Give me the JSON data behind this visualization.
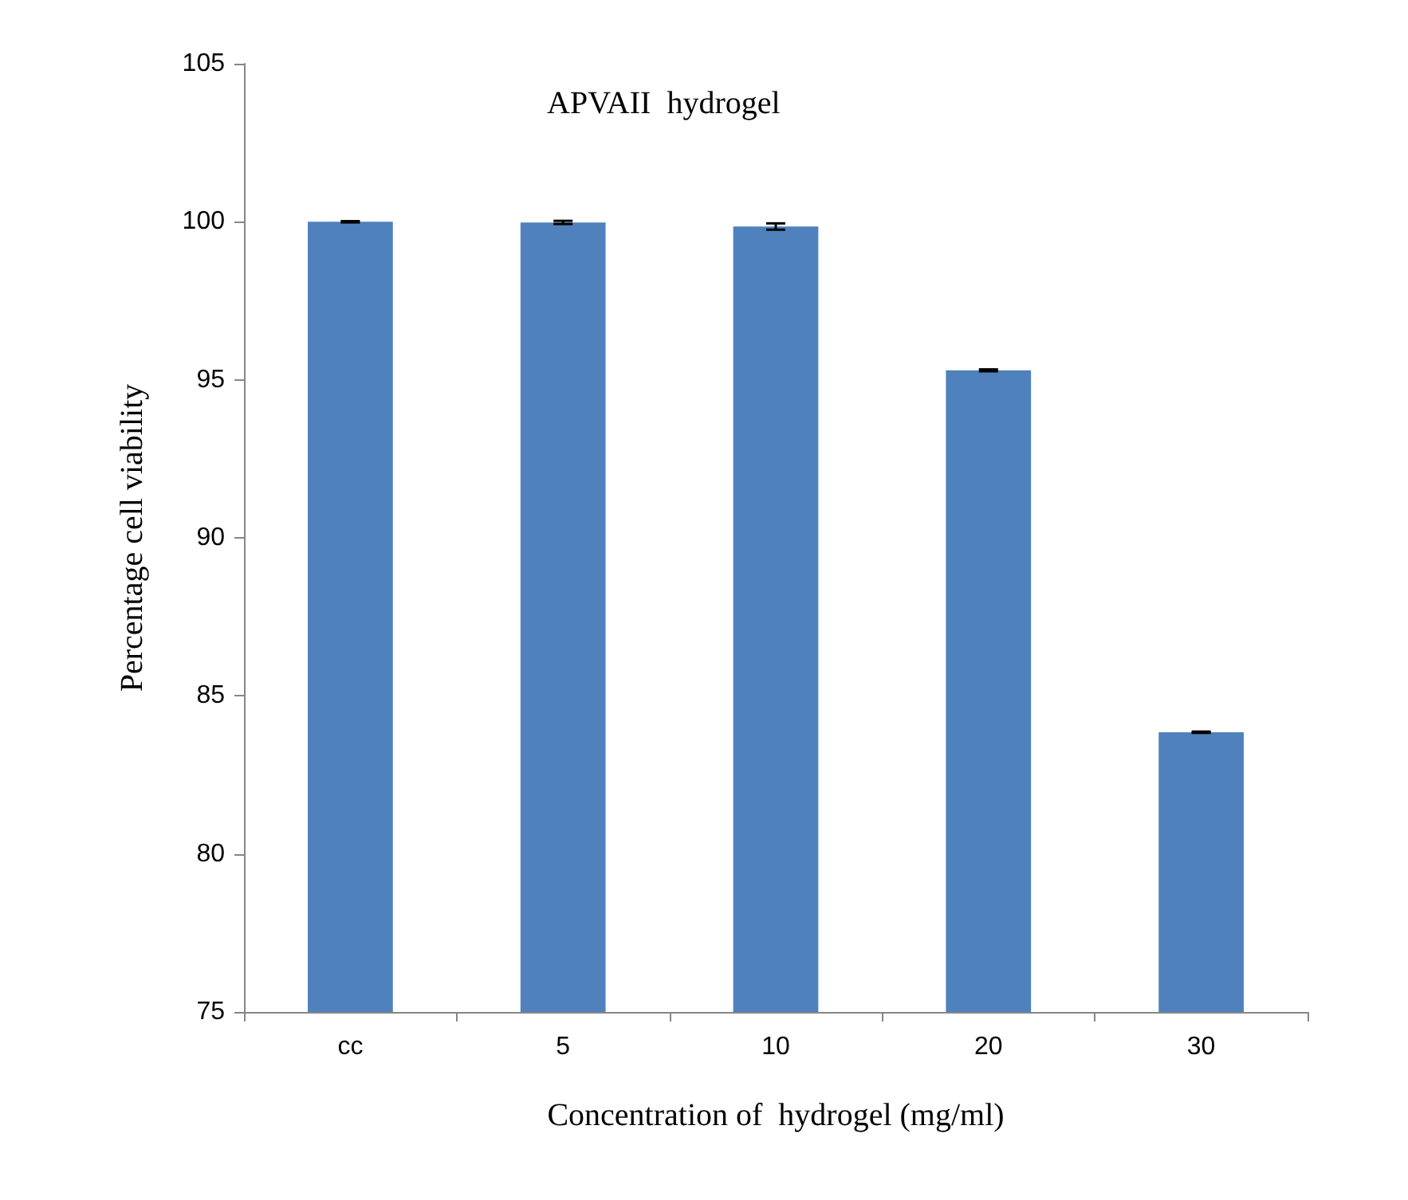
{
  "chart_data": {
    "type": "bar",
    "title": "APVAII  hydrogel",
    "xlabel": "Concentration of  hydrogel (mg/ml)",
    "ylabel": "Percentage cell viability",
    "categories": [
      "cc",
      "5",
      "10",
      "20",
      "30"
    ],
    "values": [
      100,
      99.98,
      99.85,
      95.3,
      83.85
    ],
    "errors": [
      0.02,
      0.05,
      0.1,
      0.03,
      0.02
    ],
    "color": "#4f81bd",
    "ylim": [
      75,
      105
    ],
    "yticks": [
      75,
      80,
      85,
      90,
      95,
      100,
      105
    ]
  }
}
